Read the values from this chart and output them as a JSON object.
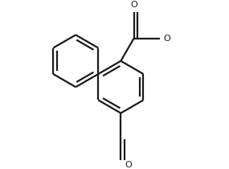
{
  "background_color": "#ffffff",
  "line_color": "#1a1a1a",
  "line_width": 1.6,
  "dbo": 0.05,
  "figsize": [
    2.85,
    2.1
  ],
  "dpi": 100,
  "ring_r": 0.33,
  "xlim": [
    -1.1,
    1.3
  ],
  "ylim": [
    -0.9,
    1.05
  ]
}
